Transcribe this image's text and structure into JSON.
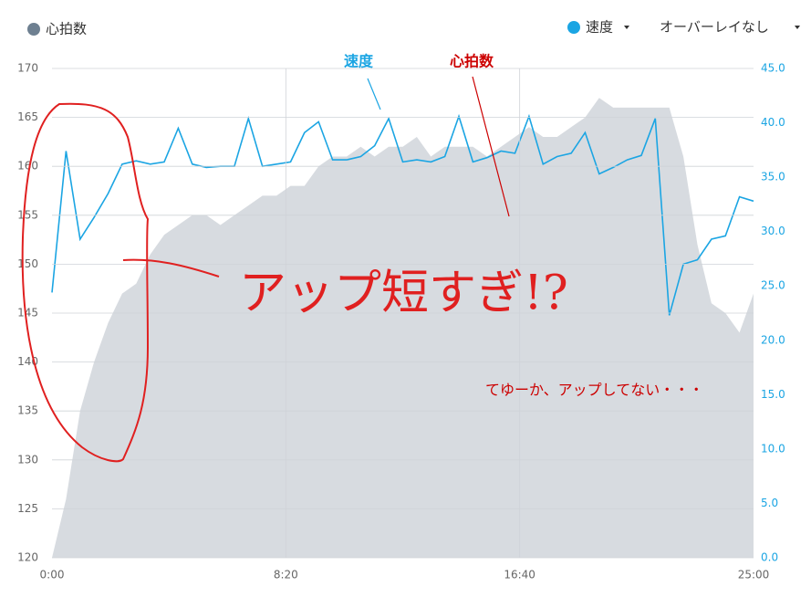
{
  "chart_data": {
    "type": "area-line",
    "x": [
      0,
      30,
      60,
      90,
      120,
      150,
      180,
      210,
      240,
      270,
      300,
      330,
      360,
      390,
      420,
      450,
      480,
      510,
      540,
      570,
      600,
      630,
      660,
      690,
      720,
      750,
      780,
      810,
      840,
      870,
      900,
      930,
      960,
      990,
      1020,
      1050,
      1080,
      1110,
      1140,
      1170,
      1200,
      1230,
      1260,
      1290,
      1320,
      1350,
      1380,
      1410,
      1440,
      1470,
      1500
    ],
    "xlim": [
      0,
      1500
    ],
    "xticks": [
      {
        "value": 0,
        "label": "0:00"
      },
      {
        "value": 500,
        "label": "8:20"
      },
      {
        "value": 1000,
        "label": "16:40"
      },
      {
        "value": 1500,
        "label": "25:00"
      }
    ],
    "ylim": [
      120,
      170
    ],
    "yticks": [
      120,
      125,
      130,
      135,
      140,
      145,
      150,
      155,
      160,
      165,
      170
    ],
    "y2lim": [
      0,
      45
    ],
    "y2ticks": [
      {
        "value": 0,
        "label": "0.0"
      },
      {
        "value": 5,
        "label": "5.0"
      },
      {
        "value": 10,
        "label": "10.0"
      },
      {
        "value": 15,
        "label": "15.0"
      },
      {
        "value": 20,
        "label": "20.0"
      },
      {
        "value": 25,
        "label": "25.0"
      },
      {
        "value": 30,
        "label": "30.0"
      },
      {
        "value": 35,
        "label": "35.0"
      },
      {
        "value": 40,
        "label": "40.0"
      },
      {
        "value": 45,
        "label": "45.0"
      }
    ],
    "grid": true,
    "series": [
      {
        "name": "心拍数",
        "color": "#d7dbe0",
        "legend_color": "#6e8091",
        "kind": "area",
        "values": [
          120,
          126,
          135,
          140,
          144,
          147,
          148,
          151,
          153,
          154,
          155,
          155,
          154,
          155,
          156,
          157,
          157,
          158,
          158,
          160,
          161,
          161,
          162,
          161,
          162,
          162,
          163,
          161,
          162,
          162,
          162,
          161,
          162,
          163,
          164,
          163,
          163,
          164,
          165,
          167,
          166,
          166,
          166,
          166,
          166,
          161,
          152,
          146,
          145,
          143,
          147
        ]
      },
      {
        "name": "速度",
        "color": "#1ba5e3",
        "kind": "line",
        "axis": "y2",
        "values": [
          24.4,
          37.4,
          29.3,
          31.3,
          33.5,
          36.2,
          36.5,
          36.2,
          36.4,
          39.5,
          36.2,
          35.9,
          36,
          36,
          40.4,
          36,
          36.2,
          36.4,
          39.1,
          40.1,
          36.6,
          36.6,
          36.9,
          37.9,
          40.4,
          36.4,
          36.6,
          36.4,
          36.9,
          40.6,
          36.4,
          36.8,
          37.4,
          37.2,
          40.6,
          36.2,
          36.9,
          37.2,
          39.1,
          35.3,
          35.9,
          36.6,
          37,
          40.4,
          22.3,
          27,
          27.4,
          29.3,
          29.6,
          33.2,
          32.8
        ]
      }
    ],
    "overlay_label": "オーバーレイなし",
    "annotations": [
      "速度",
      "心拍数",
      "アップ短すぎ!?",
      "てゆーか、アップしてない・・・"
    ]
  }
}
